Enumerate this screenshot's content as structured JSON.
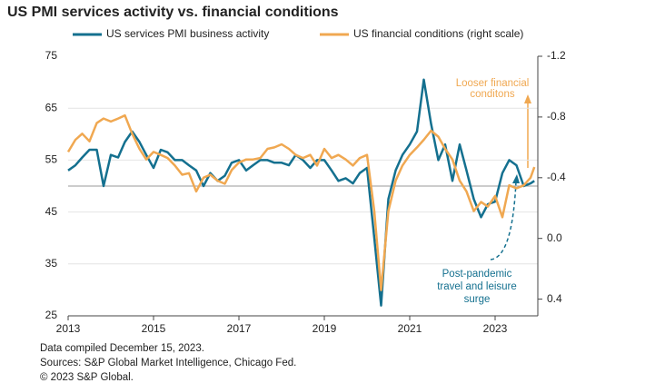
{
  "chart_data": {
    "type": "line",
    "title": "US PMI services activity vs. financial conditions",
    "x": [
      2013.0,
      2013.17,
      2013.33,
      2013.5,
      2013.67,
      2013.83,
      2014.0,
      2014.17,
      2014.33,
      2014.5,
      2014.67,
      2014.83,
      2015.0,
      2015.17,
      2015.33,
      2015.5,
      2015.67,
      2015.83,
      2016.0,
      2016.17,
      2016.33,
      2016.5,
      2016.67,
      2016.83,
      2017.0,
      2017.17,
      2017.33,
      2017.5,
      2017.67,
      2017.83,
      2018.0,
      2018.17,
      2018.33,
      2018.5,
      2018.67,
      2018.83,
      2019.0,
      2019.17,
      2019.33,
      2019.5,
      2019.67,
      2019.83,
      2020.0,
      2020.17,
      2020.33,
      2020.5,
      2020.67,
      2020.83,
      2021.0,
      2021.17,
      2021.33,
      2021.5,
      2021.67,
      2021.83,
      2022.0,
      2022.17,
      2022.33,
      2022.5,
      2022.67,
      2022.83,
      2023.0,
      2023.17,
      2023.33,
      2023.5,
      2023.67,
      2023.83,
      2023.92
    ],
    "series": [
      {
        "name": "US services PMI business activity",
        "color": "#14708f",
        "values": [
          53,
          54,
          55.5,
          57,
          57,
          50,
          56,
          55.5,
          58.5,
          60.5,
          58.5,
          56,
          53.5,
          57,
          56.5,
          55,
          55,
          54,
          53,
          50,
          52.5,
          51,
          52,
          54.5,
          55,
          53,
          54,
          55,
          55,
          54.5,
          54.5,
          54,
          56,
          55,
          53.5,
          55,
          55,
          53,
          51,
          51.5,
          50.5,
          52.5,
          53.5,
          40,
          27,
          47.5,
          53,
          56,
          58,
          60.5,
          70.5,
          62,
          55,
          58,
          51,
          58,
          53,
          47.5,
          44,
          46.5,
          47,
          52.5,
          55,
          54,
          50,
          50.5,
          51
        ]
      },
      {
        "name": "US financial conditions  (right scale)",
        "color": "#f0a851",
        "axis": "y2",
        "values": [
          -0.57,
          -0.65,
          -0.69,
          -0.64,
          -0.76,
          -0.79,
          -0.77,
          -0.79,
          -0.81,
          -0.69,
          -0.59,
          -0.52,
          -0.57,
          -0.55,
          -0.53,
          -0.48,
          -0.42,
          -0.43,
          -0.31,
          -0.4,
          -0.42,
          -0.38,
          -0.36,
          -0.45,
          -0.5,
          -0.52,
          -0.52,
          -0.53,
          -0.59,
          -0.6,
          -0.62,
          -0.59,
          -0.55,
          -0.53,
          -0.55,
          -0.48,
          -0.59,
          -0.53,
          -0.55,
          -0.52,
          -0.48,
          -0.53,
          -0.55,
          -0.18,
          0.34,
          -0.18,
          -0.38,
          -0.48,
          -0.55,
          -0.6,
          -0.65,
          -0.71,
          -0.67,
          -0.59,
          -0.52,
          -0.38,
          -0.31,
          -0.18,
          -0.24,
          -0.21,
          -0.28,
          -0.14,
          -0.35,
          -0.33,
          -0.35,
          -0.4,
          -0.47
        ]
      }
    ],
    "xlim": [
      2013,
      2024
    ],
    "xticks": [
      2013,
      2015,
      2017,
      2019,
      2021,
      2023
    ],
    "ylim": [
      25,
      75
    ],
    "yticks": [
      25,
      35,
      45,
      55,
      65,
      75
    ],
    "y2lim": [
      0.51,
      -1.2
    ],
    "y2ticks": [
      -1.2,
      -0.8,
      -0.4,
      {
        "value": 0,
        "label": "0.0"
      },
      0.4
    ],
    "reference_line": 50,
    "grid": true,
    "annotations": [
      {
        "lines": [
          "Looser financial",
          "conditons"
        ]
      },
      {
        "lines": [
          "Post-pandemic",
          "travel and leisure",
          "surge"
        ]
      }
    ],
    "footnotes": [
      "Data compiled December 15, 2023.",
      "Sources: S&P Global Market Intelligence, Chicago Fed.",
      "© 2023 S&P Global."
    ]
  }
}
